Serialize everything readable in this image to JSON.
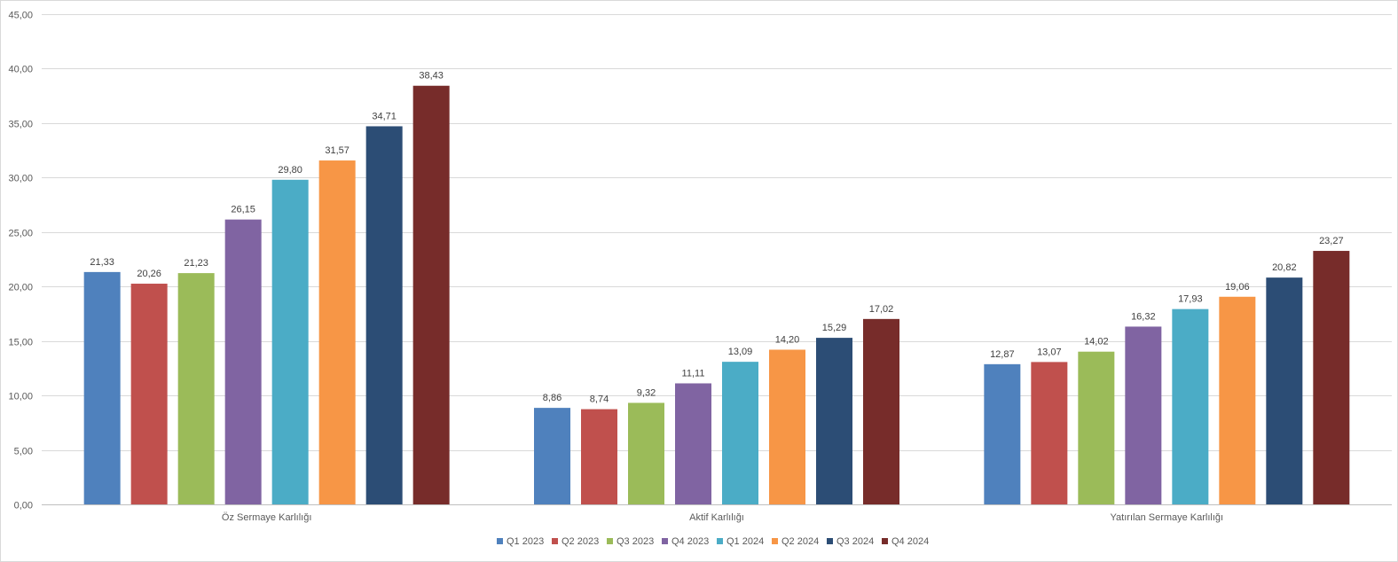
{
  "chart_data": {
    "type": "bar",
    "categories": [
      "Öz Sermaye Karlılığı",
      "Aktif Karlılığı",
      "Yatırılan Sermaye Karlılığı"
    ],
    "series": [
      {
        "name": "Q1 2023",
        "color": "#4f81bd",
        "values": [
          21.33,
          8.86,
          12.87
        ]
      },
      {
        "name": "Q2 2023",
        "color": "#c0504d",
        "values": [
          20.26,
          8.74,
          13.07
        ]
      },
      {
        "name": "Q3 2023",
        "color": "#9bbb59",
        "values": [
          21.23,
          9.32,
          14.02
        ]
      },
      {
        "name": "Q4 2023",
        "color": "#8064a2",
        "values": [
          26.15,
          11.11,
          16.32
        ]
      },
      {
        "name": "Q1 2024",
        "color": "#4bacc6",
        "values": [
          29.8,
          13.09,
          17.93
        ]
      },
      {
        "name": "Q2 2024",
        "color": "#f79646",
        "values": [
          31.57,
          14.2,
          19.06
        ]
      },
      {
        "name": "Q3 2024",
        "color": "#2c4d75",
        "values": [
          34.71,
          15.29,
          20.82
        ]
      },
      {
        "name": "Q4 2024",
        "color": "#772c2a",
        "values": [
          38.43,
          17.02,
          23.27
        ]
      }
    ],
    "ylim": [
      0,
      45
    ],
    "yticks": [
      0,
      5,
      10,
      15,
      20,
      25,
      30,
      35,
      40,
      45
    ],
    "ytick_labels": [
      "0,00",
      "5,00",
      "10,00",
      "15,00",
      "20,00",
      "25,00",
      "30,00",
      "35,00",
      "40,00",
      "45,00"
    ],
    "data_labels": [
      [
        "21,33",
        "8,86",
        "12,87"
      ],
      [
        "20,26",
        "8,74",
        "13,07"
      ],
      [
        "21,23",
        "9,32",
        "14,02"
      ],
      [
        "26,15",
        "11,11",
        "16,32"
      ],
      [
        "29,80",
        "13,09",
        "17,93"
      ],
      [
        "31,57",
        "14,20",
        "19,06"
      ],
      [
        "34,71",
        "15,29",
        "20,82"
      ],
      [
        "38,43",
        "17,02",
        "23,27"
      ]
    ],
    "grid": true,
    "legend": "bottom"
  }
}
